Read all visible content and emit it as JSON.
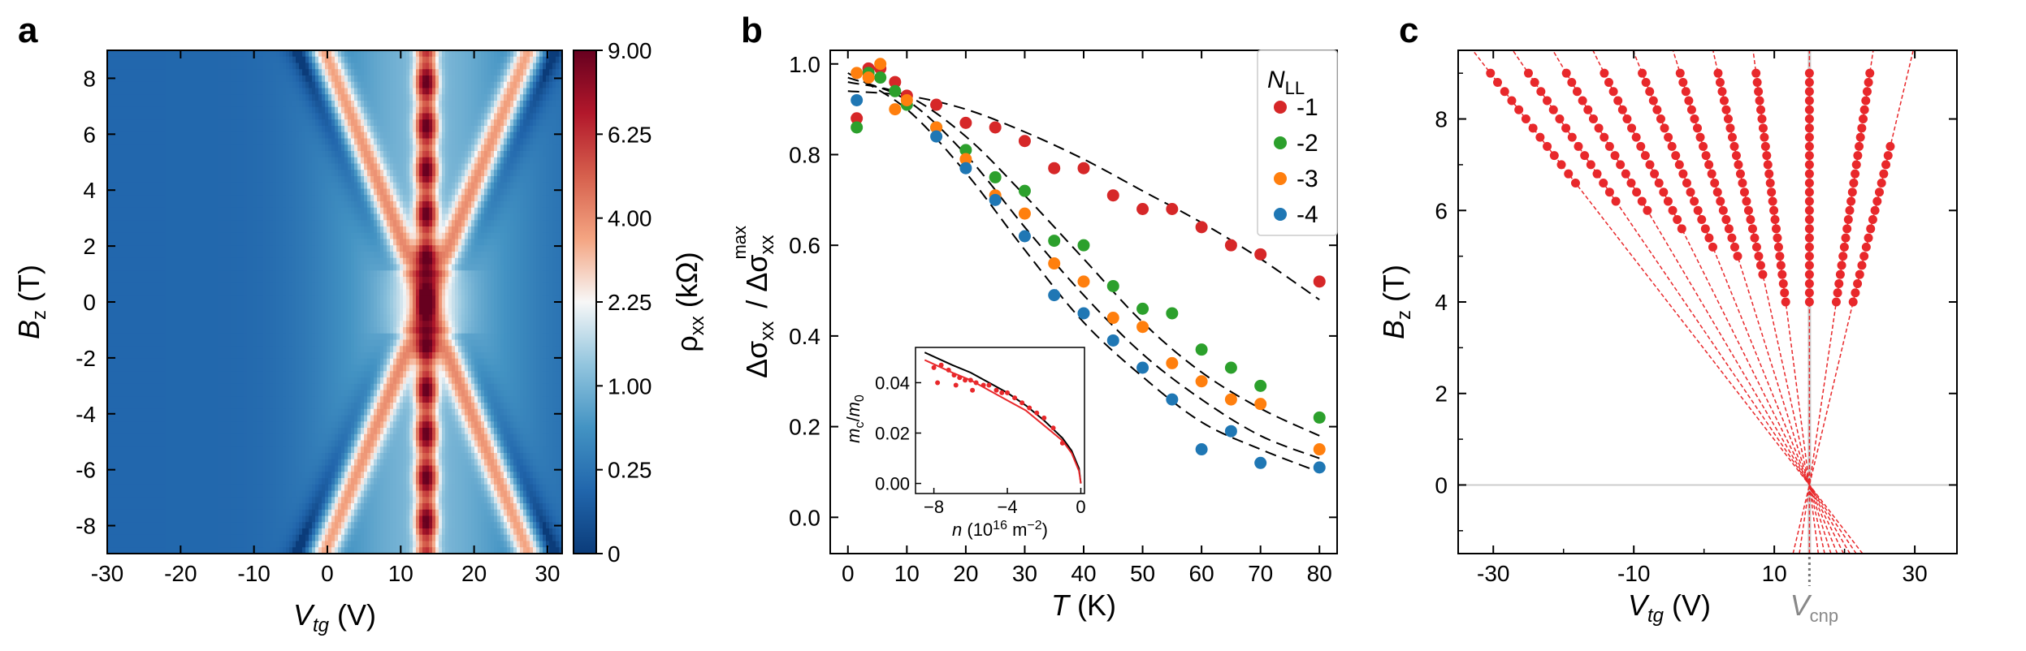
{
  "panels": {
    "a": "a",
    "b": "b",
    "c": "c"
  },
  "chart_data": [
    {
      "id": "a",
      "type": "heatmap",
      "xlabel_main": "V",
      "xlabel_sub": "tg",
      "xlabel_unit": " (V)",
      "ylabel_main": "B",
      "ylabel_sub": "z",
      "ylabel_unit": " (T)",
      "xlim": [
        -30,
        32
      ],
      "ylim": [
        -9,
        9
      ],
      "x_ticks": [
        -30,
        -20,
        -10,
        0,
        10,
        20,
        30
      ],
      "x_tick_labels": [
        "-30",
        "-20",
        "-10",
        "0",
        "10",
        "20",
        "30"
      ],
      "y_ticks": [
        8,
        6,
        4,
        2,
        0,
        -2,
        -4,
        -6,
        -8
      ],
      "y_tick_labels": [
        "8",
        "6",
        "4",
        "2",
        "0",
        "-2",
        "-4",
        "-6",
        "-8"
      ],
      "colorbar": {
        "label_main": "ρ",
        "label_sub": "xx",
        "label_unit": " (kΩ)",
        "tick_labels": [
          "9.00",
          "6.25",
          "4.00",
          "2.25",
          "1.00",
          "0.25",
          "0"
        ],
        "tick_values": [
          9.0,
          6.25,
          4.0,
          2.25,
          1.0,
          0.25,
          0
        ],
        "scale": "sqrt",
        "colors": [
          "#0b3c7a",
          "#2166ac",
          "#4393c3",
          "#92c5de",
          "#f7f7f7",
          "#f4a582",
          "#d6604d",
          "#b2182b",
          "#67001f"
        ]
      },
      "cnp_V": 13.5
    },
    {
      "id": "b",
      "type": "scatter",
      "xlabel": "T",
      "xlabel_unit": " (K)",
      "ylabel_num": "Δσ",
      "ylabel_num_sub": "xx",
      "ylabel_den": "Δσ",
      "ylabel_den_sub": "xx",
      "ylabel_den_sup": "max",
      "xlim": [
        -3,
        83
      ],
      "ylim": [
        -0.08,
        1.03
      ],
      "x_ticks": [
        0,
        10,
        20,
        30,
        40,
        50,
        60,
        70,
        80
      ],
      "x_tick_labels": [
        "0",
        "10",
        "20",
        "30",
        "40",
        "50",
        "60",
        "70",
        "80"
      ],
      "y_ticks": [
        0.0,
        0.2,
        0.4,
        0.6,
        0.8,
        1.0
      ],
      "y_tick_labels": [
        "0.0",
        "0.2",
        "0.4",
        "0.6",
        "0.8",
        "1.0"
      ],
      "legend_title_main": "N",
      "legend_title_sub": "LL",
      "legend_position": "top-right",
      "series": [
        {
          "name": "-1",
          "color": "#d62728",
          "x": [
            1.5,
            3.5,
            5.5,
            8,
            10,
            15,
            20,
            25,
            30,
            35,
            40,
            45,
            50,
            55,
            60,
            65,
            70,
            80
          ],
          "y": [
            0.88,
            0.99,
            0.99,
            0.96,
            0.93,
            0.91,
            0.87,
            0.86,
            0.83,
            0.77,
            0.77,
            0.71,
            0.68,
            0.68,
            0.64,
            0.6,
            0.58,
            0.52
          ]
        },
        {
          "name": "-2",
          "color": "#2ca02c",
          "x": [
            1.5,
            3.5,
            5.5,
            8,
            10,
            15,
            20,
            25,
            30,
            35,
            40,
            45,
            50,
            55,
            60,
            65,
            70,
            80
          ],
          "y": [
            0.86,
            0.98,
            0.97,
            0.94,
            0.91,
            0.86,
            0.81,
            0.75,
            0.72,
            0.61,
            0.6,
            0.51,
            0.46,
            0.45,
            0.37,
            0.33,
            0.29,
            0.22
          ]
        },
        {
          "name": "-3",
          "color": "#ff7f0e",
          "x": [
            1.5,
            3.5,
            5.5,
            8,
            10,
            15,
            20,
            25,
            30,
            35,
            40,
            45,
            50,
            55,
            60,
            65,
            70,
            80
          ],
          "y": [
            0.98,
            0.97,
            1.0,
            0.9,
            0.92,
            0.86,
            0.79,
            0.71,
            0.67,
            0.56,
            0.52,
            0.44,
            0.42,
            0.34,
            0.3,
            0.26,
            0.25,
            0.15
          ]
        },
        {
          "name": "-4",
          "color": "#1f77b4",
          "x": [
            1.5,
            15,
            20,
            25,
            30,
            35,
            40,
            45,
            50,
            55,
            60,
            65,
            70,
            80
          ],
          "y": [
            0.92,
            0.84,
            0.77,
            0.7,
            0.62,
            0.49,
            0.45,
            0.39,
            0.33,
            0.26,
            0.15,
            0.19,
            0.12,
            0.11
          ]
        }
      ],
      "fits": [
        {
          "x": [
            0,
            10,
            20,
            30,
            40,
            50,
            60,
            70,
            80
          ],
          "y": [
            0.94,
            0.93,
            0.9,
            0.85,
            0.79,
            0.72,
            0.65,
            0.57,
            0.48
          ]
        },
        {
          "x": [
            0,
            10,
            20,
            30,
            40,
            50,
            60,
            70,
            80
          ],
          "y": [
            0.96,
            0.93,
            0.84,
            0.71,
            0.57,
            0.43,
            0.32,
            0.24,
            0.18
          ]
        },
        {
          "x": [
            0,
            10,
            20,
            30,
            40,
            50,
            60,
            70,
            80
          ],
          "y": [
            0.97,
            0.92,
            0.8,
            0.64,
            0.49,
            0.36,
            0.26,
            0.18,
            0.13
          ]
        },
        {
          "x": [
            0,
            10,
            20,
            30,
            40,
            50,
            60,
            70,
            80
          ],
          "y": [
            0.98,
            0.9,
            0.76,
            0.59,
            0.43,
            0.31,
            0.21,
            0.15,
            0.1
          ]
        }
      ],
      "inset": {
        "type": "scatter",
        "xlabel_main": "n",
        "xlabel_unit": " (10",
        "xlabel_exp": "16",
        "xlabel_unit2": " m",
        "xlabel_exp2": "−2",
        "xlabel_close": ")",
        "ylabel_main": "m",
        "ylabel_sub": "c",
        "ylabel_sep": "/",
        "ylabel_main2": "m",
        "ylabel_sub2": "0",
        "xlim": [
          -9,
          0.2
        ],
        "ylim": [
          -0.004,
          0.054
        ],
        "x_ticks": [
          -8,
          -4,
          0
        ],
        "x_tick_labels": [
          "−8",
          "−4",
          "0"
        ],
        "y_ticks": [
          0.0,
          0.02,
          0.04
        ],
        "y_tick_labels": [
          "0.00",
          "0.02",
          "0.04"
        ],
        "points_x": [
          -8.0,
          -7.6,
          -7.2,
          -6.9,
          -6.6,
          -6.3,
          -6.0,
          -5.7,
          -5.3,
          -5.0,
          -4.6,
          -4.3,
          -4.0,
          -3.6,
          -3.2,
          -2.8,
          -2.4,
          -2.0,
          -1.5,
          -1.0,
          -7.8,
          -6.8,
          -5.9
        ],
        "points_y": [
          0.046,
          0.047,
          0.045,
          0.043,
          0.042,
          0.041,
          0.041,
          0.04,
          0.039,
          0.039,
          0.037,
          0.036,
          0.036,
          0.034,
          0.032,
          0.03,
          0.028,
          0.026,
          0.022,
          0.016,
          0.04,
          0.039,
          0.037
        ],
        "curve1_x": [
          -8.5,
          -7,
          -6,
          -5,
          -4,
          -3,
          -2,
          -1,
          -0.5,
          -0.1,
          0
        ],
        "curve1_y": [
          0.052,
          0.047,
          0.044,
          0.04,
          0.036,
          0.031,
          0.025,
          0.018,
          0.013,
          0.006,
          0.0
        ],
        "curve2_x": [
          -8.5,
          -7,
          -6,
          -5,
          -4,
          -3,
          -2,
          -1,
          -0.5,
          -0.1,
          0
        ],
        "curve2_y": [
          0.049,
          0.044,
          0.041,
          0.037,
          0.033,
          0.029,
          0.023,
          0.017,
          0.012,
          0.005,
          0.0
        ]
      }
    },
    {
      "id": "c",
      "type": "line",
      "xlabel_main": "V",
      "xlabel_sub": "tg",
      "xlabel_unit": " (V)",
      "ylabel_main": "B",
      "ylabel_sub": "z",
      "ylabel_unit": " (T)",
      "xlim": [
        -35,
        36
      ],
      "ylim": [
        -1.5,
        9.5
      ],
      "x_ticks": [
        -30,
        -10,
        10,
        30
      ],
      "x_tick_labels": [
        "-30",
        "-10",
        "10",
        "30"
      ],
      "y_ticks": [
        0,
        2,
        4,
        6,
        8
      ],
      "y_tick_labels": [
        "0",
        "2",
        "4",
        "6",
        "8"
      ],
      "cnp_label_main": "V",
      "cnp_label_sub": "cnp",
      "cnp_V": 15,
      "color": "#e8282b",
      "fan_slopes_per_T": [
        -5.04,
        -4.44,
        -3.84,
        -3.24,
        -2.64,
        -2.04,
        -1.44,
        -0.84,
        0.0,
        0.96,
        1.56
      ],
      "fan_lines": [
        {
          "V0": 15,
          "V_at_9": -30.4,
          "dots_B": [
            6.6,
            9.0
          ]
        },
        {
          "V0": 15,
          "V_at_9": -25.0,
          "dots_B": [
            6.2,
            9.0
          ]
        },
        {
          "V0": 15,
          "V_at_9": -19.6,
          "dots_B": [
            6.0,
            9.0
          ]
        },
        {
          "V0": 15,
          "V_at_9": -14.2,
          "dots_B": [
            5.6,
            9.0
          ]
        },
        {
          "V0": 15,
          "V_at_9": -8.8,
          "dots_B": [
            5.2,
            9.0
          ]
        },
        {
          "V0": 15,
          "V_at_9": -3.4,
          "dots_B": [
            5.0,
            9.0
          ]
        },
        {
          "V0": 15,
          "V_at_9": 2.0,
          "dots_B": [
            4.6,
            9.0
          ]
        },
        {
          "V0": 15,
          "V_at_9": 7.4,
          "dots_B": [
            4.0,
            9.0
          ]
        },
        {
          "V0": 15,
          "V_at_9": 15.0,
          "dots_B": [
            4.0,
            9.0
          ]
        },
        {
          "V0": 15,
          "V_at_9": 23.6,
          "dots_B": [
            4.0,
            9.0
          ]
        },
        {
          "V0": 15,
          "V_at_9": 29.0,
          "dots_B": [
            4.0,
            7.4
          ]
        }
      ]
    }
  ]
}
